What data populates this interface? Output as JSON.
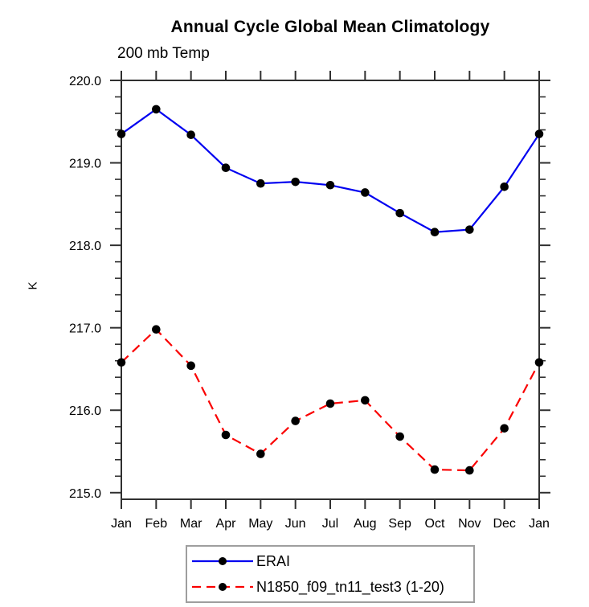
{
  "chart": {
    "title": "Annual Cycle Global Mean Climatology",
    "subtitle": "200 mb Temp",
    "ylabel": "K"
  },
  "legend": {
    "items": [
      {
        "label": "ERAI",
        "color": "#0000f0",
        "style": "solid"
      },
      {
        "label": "N1850_f09_tn11_test3 (1-20)",
        "color": "#fa0000",
        "style": "dashed"
      }
    ]
  },
  "colors": {
    "erai_line": "#0000f0",
    "model_line": "#fa0000",
    "marker": "#000000",
    "axis": "#303030",
    "legend_border": "#9e9e9e"
  },
  "chart_data": {
    "type": "line",
    "title": "Annual Cycle Global Mean Climatology",
    "subtitle": "200 mb Temp",
    "xlabel": "",
    "ylabel": "K",
    "categories": [
      "Jan",
      "Feb",
      "Mar",
      "Apr",
      "May",
      "Jun",
      "Jul",
      "Aug",
      "Sep",
      "Oct",
      "Nov",
      "Dec",
      "Jan"
    ],
    "series": [
      {
        "name": "ERAI",
        "color": "#0000f0",
        "style": "solid",
        "marker": "circle",
        "values": [
          219.35,
          219.65,
          219.34,
          218.94,
          218.75,
          218.77,
          218.73,
          218.64,
          218.39,
          218.16,
          218.19,
          218.71,
          219.35
        ]
      },
      {
        "name": "N1850_f09_tn11_test3 (1-20)",
        "color": "#fa0000",
        "style": "dashed",
        "marker": "circle",
        "values": [
          216.58,
          216.98,
          216.54,
          215.7,
          215.47,
          215.87,
          216.08,
          216.12,
          215.68,
          215.28,
          215.27,
          215.78,
          216.58
        ]
      }
    ],
    "ylim": [
      214.92,
      220.0
    ],
    "yticks_major": [
      220.0,
      219.0,
      218.0,
      217.0,
      216.0,
      215.0
    ],
    "ytick_labels": [
      "220.0",
      "219.0",
      "218.0",
      "217.0",
      "216.0",
      "215.0"
    ],
    "y_minor_step": 0.2,
    "grid": false,
    "legend_position": "bottom"
  }
}
